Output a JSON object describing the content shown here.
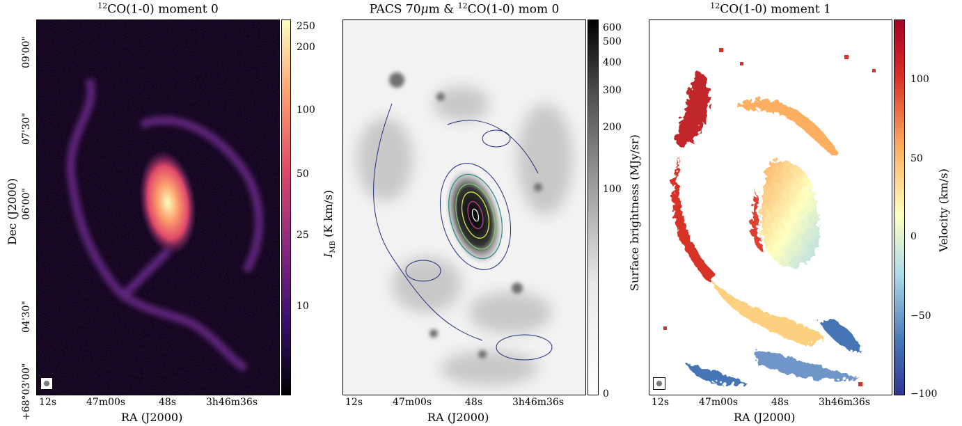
{
  "panels": [
    {
      "title_iso": "12",
      "title_text": "CO(1-0) moment 0",
      "colorbar_label": "I",
      "colorbar_label_sub": "MB",
      "colorbar_label_rest": " (K km/s)",
      "colorbar_ticks": [
        "250",
        "200",
        "100",
        "50",
        "25",
        "10"
      ],
      "colorbar_tick_values": [
        250,
        200,
        100,
        50,
        25,
        10
      ],
      "colorbar_range": [
        5,
        270
      ],
      "colorbar_scale": "log",
      "colormap": [
        "#000004",
        "#3b0f70",
        "#8c2981",
        "#de4968",
        "#fe9f6d",
        "#fcfdbf"
      ]
    },
    {
      "title_prefix": "PACS 70",
      "title_mu": "μ",
      "title_mid": "m & ",
      "title_iso": "12",
      "title_text": "CO(1-0) mom 0",
      "colorbar_label": "Surface brightness (MJy/sr)",
      "colorbar_ticks": [
        "600",
        "500",
        "400",
        "300",
        "200",
        "100",
        "0"
      ],
      "colorbar_tick_values": [
        600,
        500,
        400,
        300,
        200,
        100,
        0
      ],
      "colorbar_range": [
        0,
        650
      ],
      "colorbar_scale": "asinh",
      "colormap": [
        "#ffffff",
        "#d0d0d0",
        "#808080",
        "#303030",
        "#000000"
      ]
    },
    {
      "title_iso": "12",
      "title_text": "CO(1-0) moment 1",
      "colorbar_label": "Velocity (km/s)",
      "colorbar_ticks": [
        "100",
        "50",
        "0",
        "−50",
        "−100"
      ],
      "colorbar_tick_values": [
        100,
        50,
        0,
        -50,
        -100
      ],
      "colorbar_range": [
        -100,
        140
      ],
      "colorbar_scale": "linear",
      "colormap": [
        "#313695",
        "#4575b4",
        "#abd9e9",
        "#ffffbf",
        "#fdae61",
        "#d73027",
        "#a50026"
      ]
    }
  ],
  "axes": {
    "ylabel": "Dec (J2000)",
    "xlabel": "RA (J2000)",
    "dec_ticks": [
      "09'00\"",
      "07'30\"",
      "06'00\"",
      "04'30\"",
      "+68°03'00\""
    ],
    "ra_ticks": [
      "12s",
      "47m00s",
      "48s",
      "3h46m36s"
    ]
  },
  "colors": {
    "contour": "#1f2a80",
    "contour_inner": [
      "#2e8b8b",
      "#7ccf6a",
      "#d8e84a",
      "#c04090",
      "#ffffff"
    ]
  }
}
